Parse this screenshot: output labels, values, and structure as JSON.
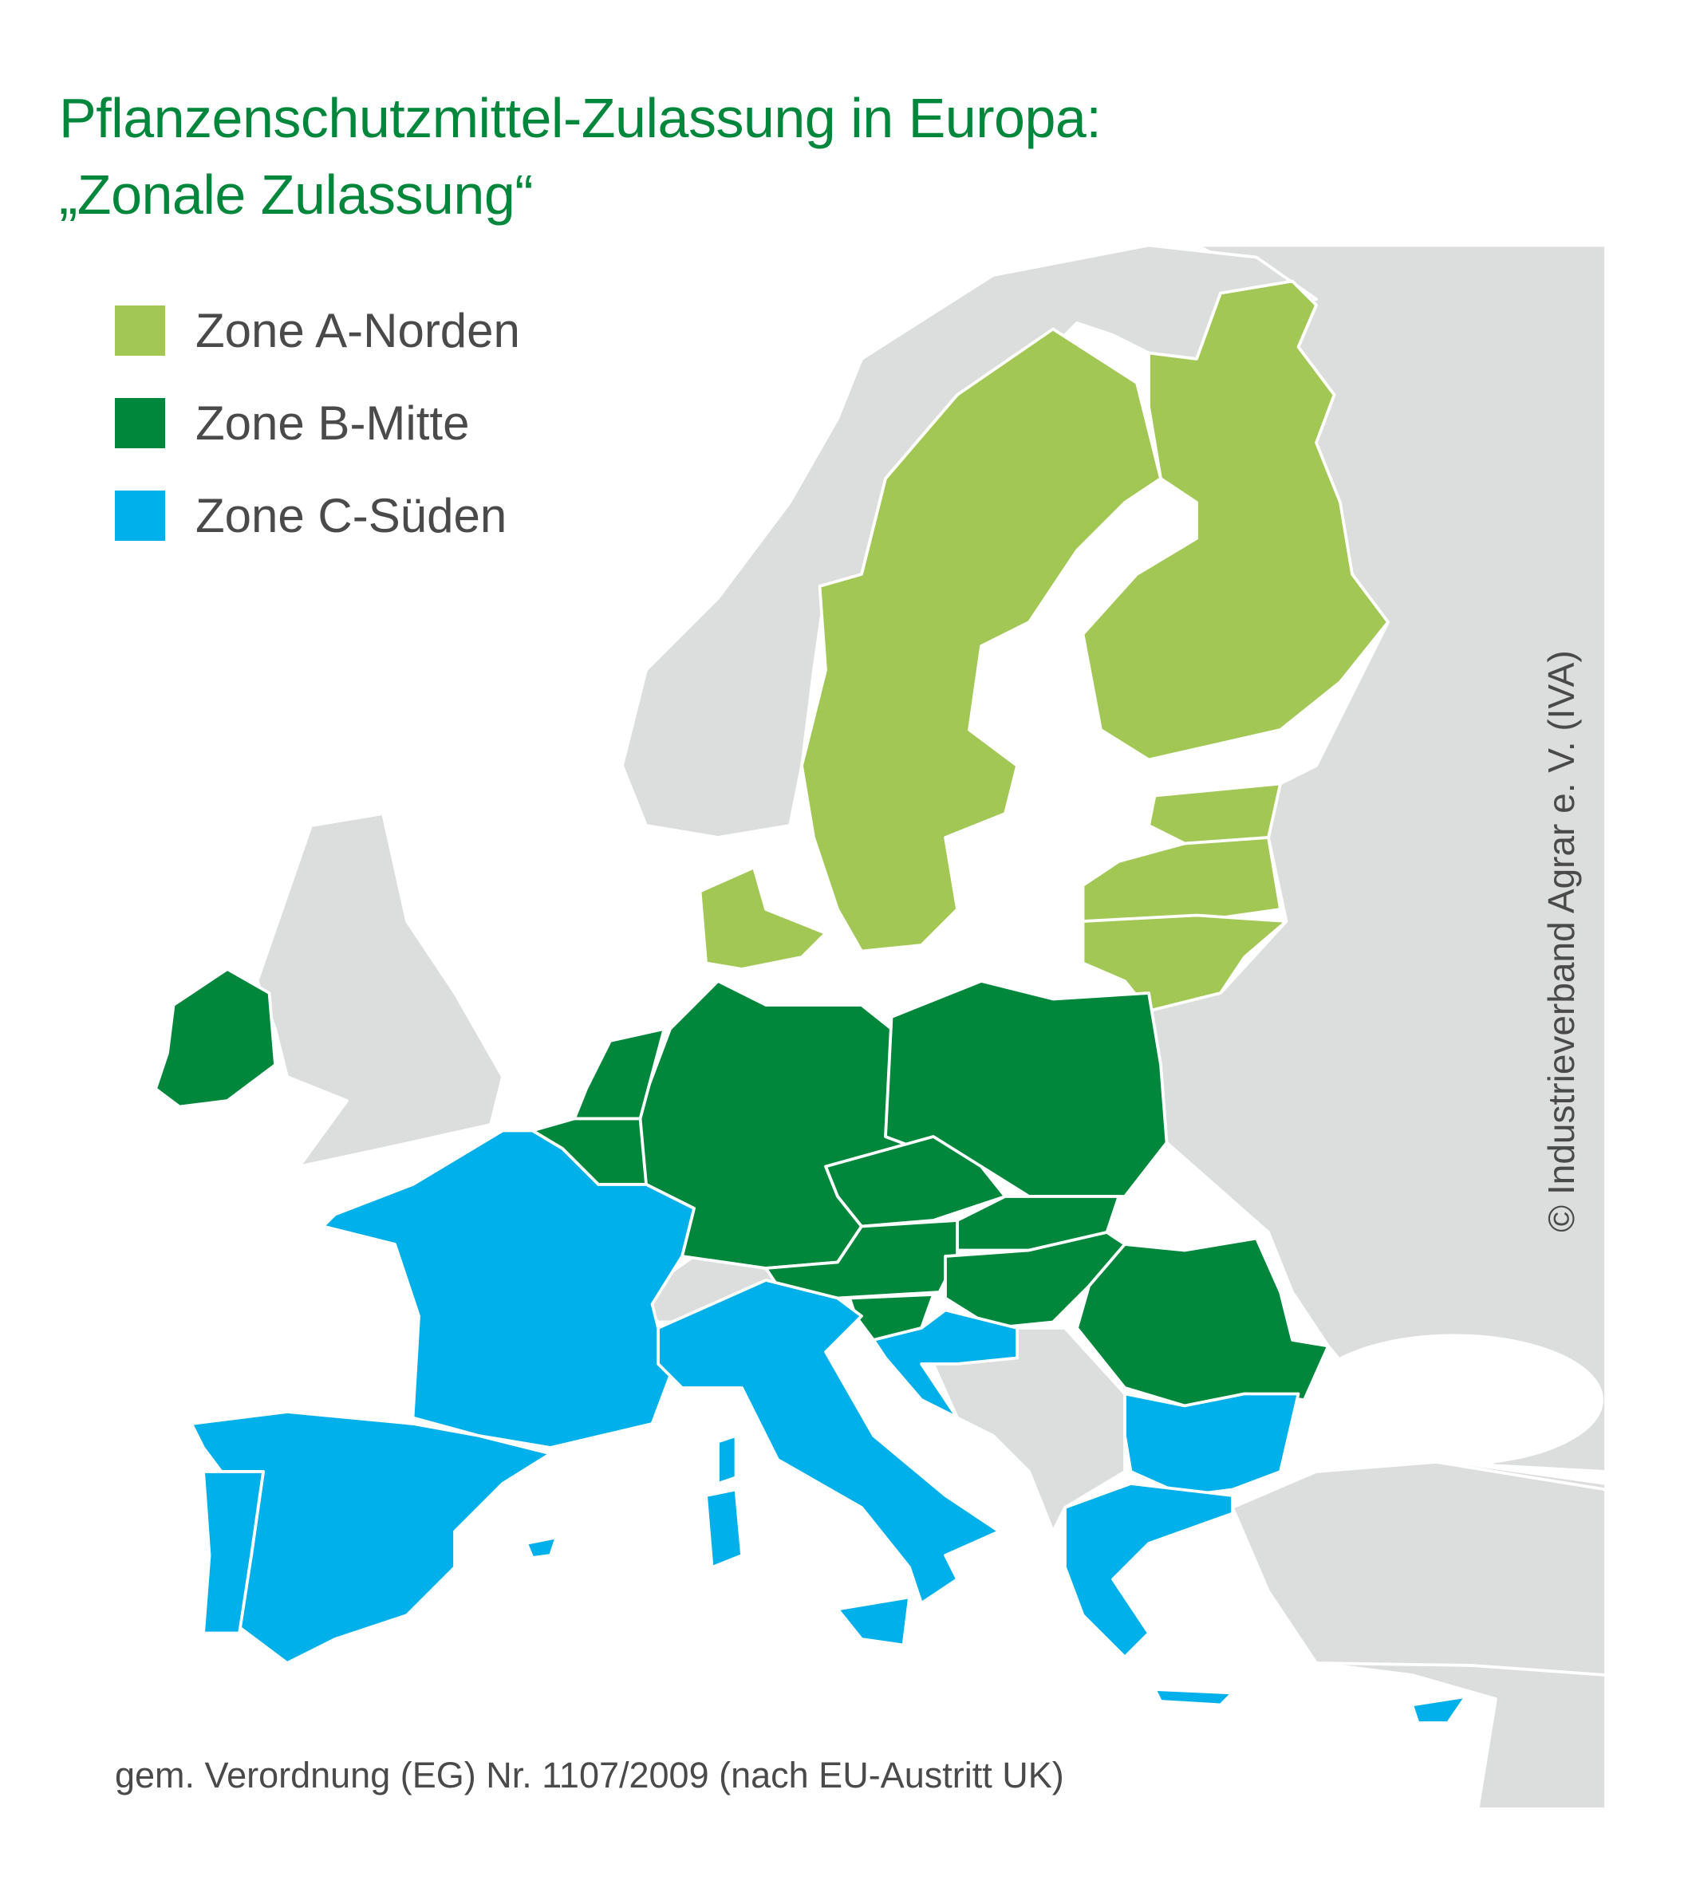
{
  "title": {
    "line1": "Pflanzenschutzmittel-Zulassung in Europa:",
    "line2": "„Zonale Zulassung“"
  },
  "legend": [
    {
      "label": "Zone A-Norden",
      "color": "#a2c754"
    },
    {
      "label": "Zone B-Mitte",
      "color": "#00873c"
    },
    {
      "label": "Zone C-Süden",
      "color": "#00b0ea"
    }
  ],
  "colors": {
    "non_eu": "#dcdddd",
    "title": "#00873c",
    "text": "#4a4a4a",
    "border": "#ffffff"
  },
  "footer": "gem. Verordnung (EG) Nr. 1107/2009 (nach EU-Austritt UK)",
  "copyright": "© Industrieverband Agrar e. V. (IVA)"
}
